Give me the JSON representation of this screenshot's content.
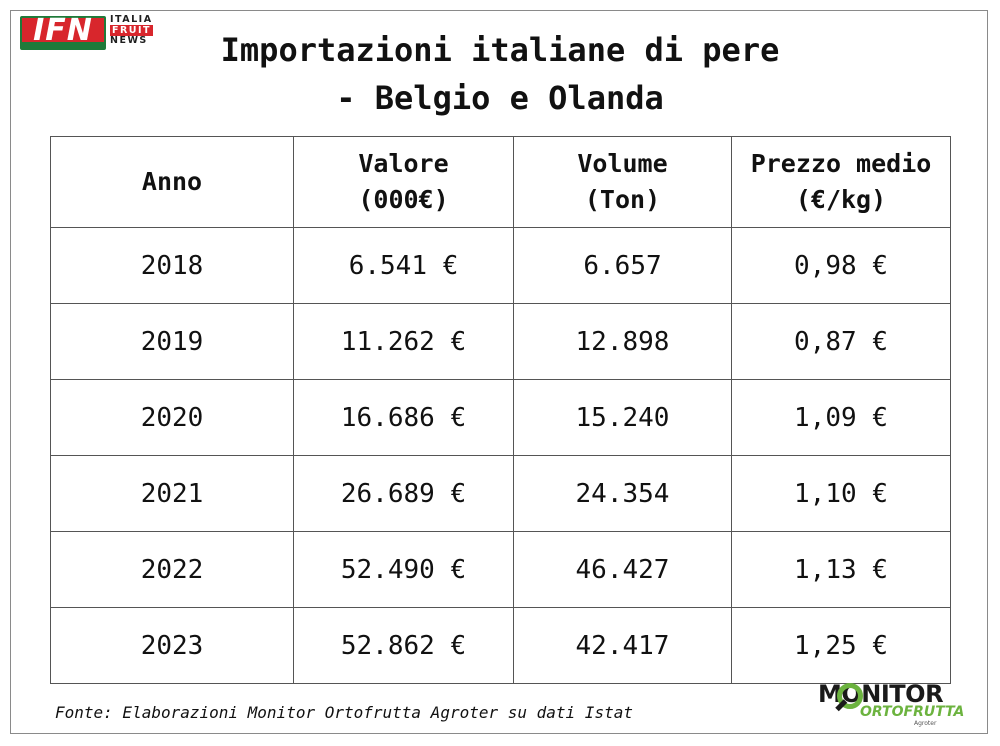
{
  "logos": {
    "ifn": {
      "mark": "IFN",
      "line1": "ITALIA",
      "line2": "FRUIT",
      "line3": "NEWS"
    },
    "monitor": {
      "word": "MONITOR",
      "sub": "ORTOFRUTTA",
      "by": "Agroter"
    }
  },
  "title": {
    "line1": "Importazioni italiane di pere",
    "line2": "- Belgio e Olanda"
  },
  "table": {
    "headers": [
      {
        "line1": "Anno",
        "line2": ""
      },
      {
        "line1": "Valore",
        "line2": "(000€)"
      },
      {
        "line1": "Volume",
        "line2": "(Ton)"
      },
      {
        "line1": "Prezzo medio",
        "line2": "(€/kg)"
      }
    ],
    "rows": [
      [
        "2018",
        "6.541 €",
        "6.657",
        "0,98 €"
      ],
      [
        "2019",
        "11.262 €",
        "12.898",
        "0,87 €"
      ],
      [
        "2020",
        "16.686 €",
        "15.240",
        "1,09 €"
      ],
      [
        "2021",
        "26.689 €",
        "24.354",
        "1,10 €"
      ],
      [
        "2022",
        "52.490 €",
        "46.427",
        "1,13 €"
      ],
      [
        "2023",
        "52.862 €",
        "42.417",
        "1,25 €"
      ]
    ]
  },
  "source": "Fonte: Elaborazioni Monitor Ortofrutta Agroter su dati Istat",
  "colors": {
    "ifn_red": "#d8262c",
    "ifn_green": "#1f7a3a",
    "monitor_green": "#6cb33f",
    "border": "#555555"
  }
}
